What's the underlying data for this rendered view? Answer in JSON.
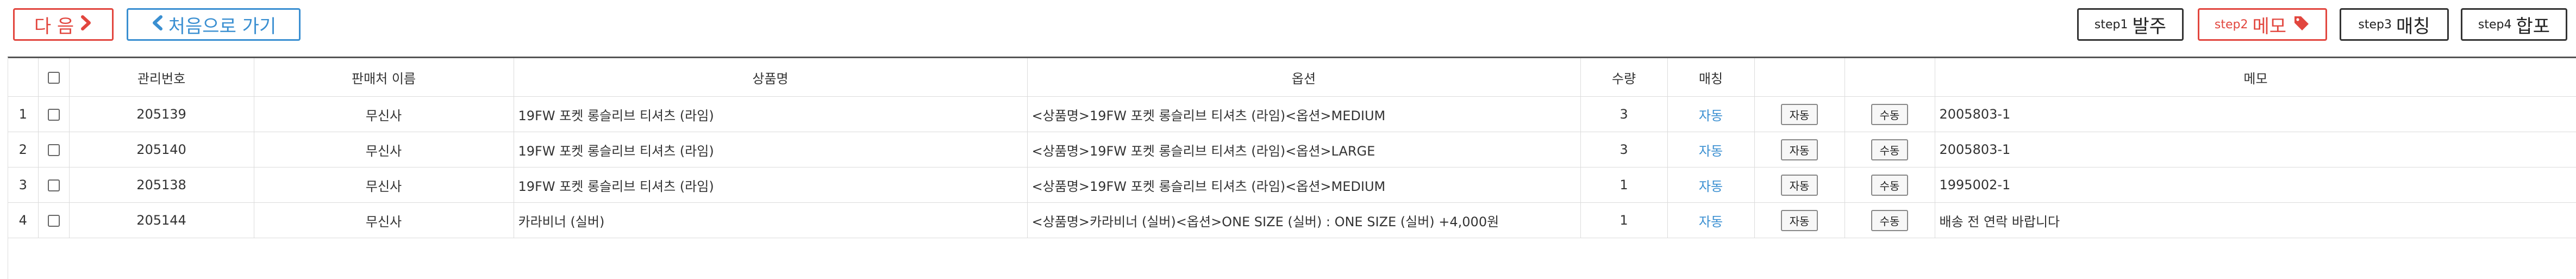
{
  "toolbar": {
    "next_label": "다 음",
    "first_label": "처음으로 가기",
    "steps": [
      {
        "small": "step1",
        "big": "발주"
      },
      {
        "small": "step2",
        "big": "메모"
      },
      {
        "small": "step3",
        "big": "매칭"
      },
      {
        "small": "step4",
        "big": "합포"
      }
    ]
  },
  "table": {
    "headers": [
      "",
      "",
      "관리번호",
      "판매처 이름",
      "상품명",
      "옵션",
      "수량",
      "매칭",
      "",
      "",
      "메모"
    ],
    "rows": [
      {
        "no": "1",
        "id": "205139",
        "seller": "무신사",
        "product": "19FW 포켓 롱슬리브 티셔츠 (라임)",
        "option": "<상품명>19FW 포켓 롱슬리브 티셔츠 (라임)<옵션>MEDIUM",
        "qty": "3",
        "match": "자동",
        "btn_auto": "자동",
        "btn_manual": "수동",
        "memo": "2005803-1"
      },
      {
        "no": "2",
        "id": "205140",
        "seller": "무신사",
        "product": "19FW 포켓 롱슬리브 티셔츠 (라임)",
        "option": "<상품명>19FW 포켓 롱슬리브 티셔츠 (라임)<옵션>LARGE",
        "qty": "3",
        "match": "자동",
        "btn_auto": "자동",
        "btn_manual": "수동",
        "memo": "2005803-1"
      },
      {
        "no": "3",
        "id": "205138",
        "seller": "무신사",
        "product": "19FW 포켓 롱슬리브 티셔츠 (라임)",
        "option": "<상품명>19FW 포켓 롱슬리브 티셔츠 (라임)<옵션>MEDIUM",
        "qty": "1",
        "match": "자동",
        "btn_auto": "자동",
        "btn_manual": "수동",
        "memo": "1995002-1"
      },
      {
        "no": "4",
        "id": "205144",
        "seller": "무신사",
        "product": "카라비너 (실버)",
        "option": "<상품명>카라비너 (실버)<옵션>ONE SIZE (실버) : ONE SIZE (실버) +4,000원",
        "qty": "1",
        "match": "자동",
        "btn_auto": "자동",
        "btn_manual": "수동",
        "memo": "배송 전 연락 바랍니다"
      }
    ]
  }
}
